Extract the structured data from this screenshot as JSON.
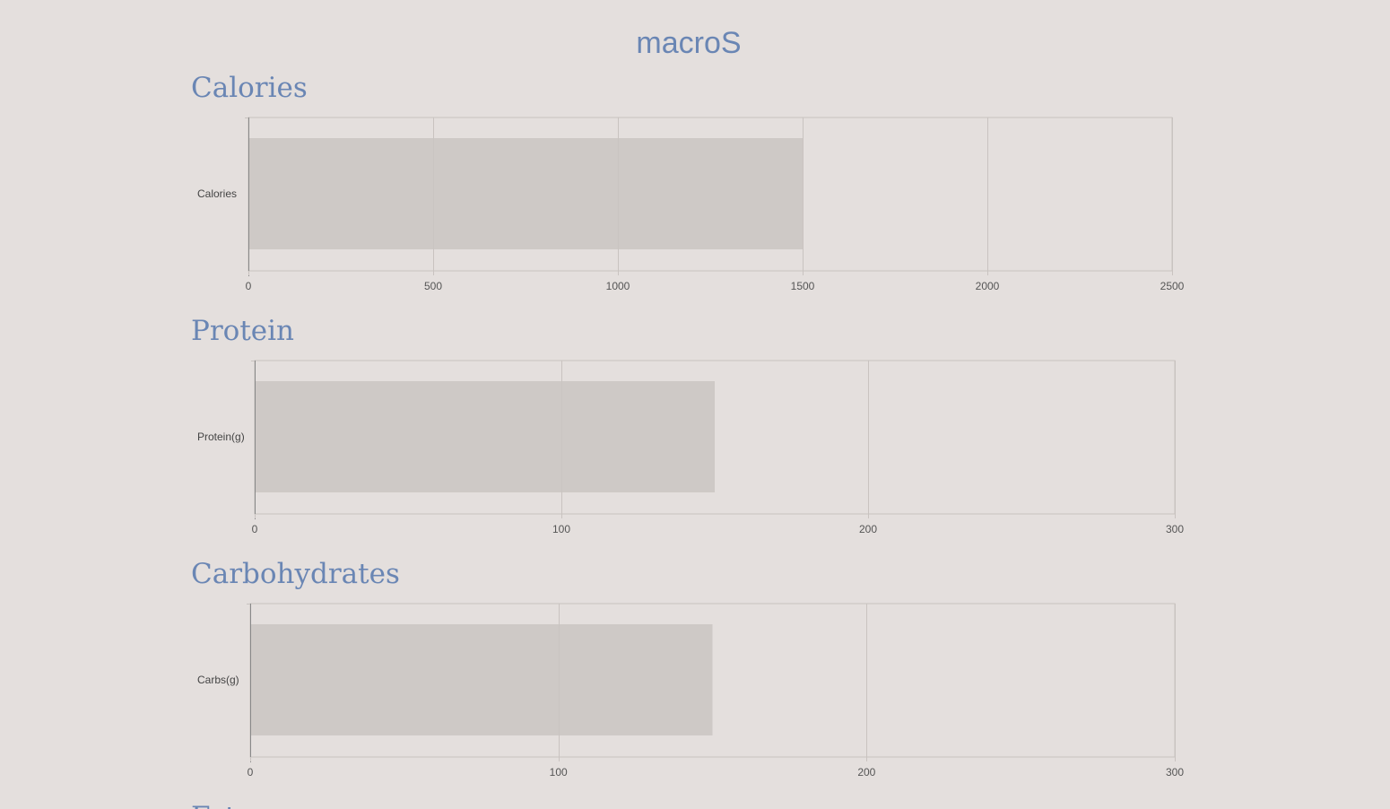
{
  "app": {
    "title": "macroS"
  },
  "colors": {
    "background": "#e4dfdd",
    "title": "#6a86b4",
    "bar": "#cec9c6",
    "grid": "#c9c3c0",
    "axis": "#888888"
  },
  "sections": [
    {
      "id": "calories",
      "title": "Calories"
    },
    {
      "id": "protein",
      "title": "Protein"
    },
    {
      "id": "carbs",
      "title": "Carbohydrates"
    },
    {
      "id": "fat",
      "title": "Fat"
    }
  ],
  "chart_data": [
    {
      "type": "bar",
      "orientation": "horizontal",
      "categories": [
        "Calories"
      ],
      "values": [
        1500
      ],
      "xlim": [
        0,
        2500
      ],
      "xticks": [
        0,
        500,
        1000,
        1500,
        2000,
        2500
      ],
      "grid": true
    },
    {
      "type": "bar",
      "orientation": "horizontal",
      "categories": [
        "Protein(g)"
      ],
      "values": [
        150
      ],
      "xlim": [
        0,
        300
      ],
      "xticks": [
        0,
        100,
        200,
        300
      ],
      "grid": true
    },
    {
      "type": "bar",
      "orientation": "horizontal",
      "categories": [
        "Carbs(g)"
      ],
      "values": [
        150
      ],
      "xlim": [
        0,
        300
      ],
      "xticks": [
        0,
        100,
        200,
        300
      ],
      "grid": true
    }
  ]
}
